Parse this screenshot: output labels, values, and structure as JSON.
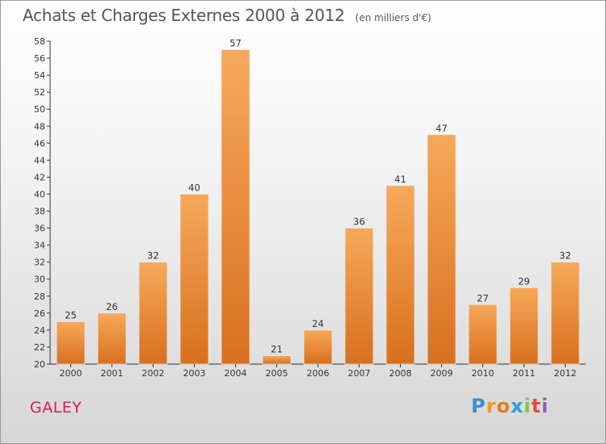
{
  "title": "Achats et Charges Externes 2000 à 2012",
  "unit_label": "(en milliers d'€)",
  "place_name": "GALEY",
  "logo": {
    "letters": [
      "P",
      "r",
      "o",
      "x",
      "i",
      "t",
      "i"
    ],
    "colors": [
      "#3a8fd0",
      "#f39c12",
      "#e67e22",
      "#2c9fd8",
      "#8bc34a",
      "#e74c3c",
      "#9b59b6"
    ]
  },
  "colors": {
    "bar_light": "#f7a95a",
    "bar_dark": "#d8701e",
    "title": "#555555",
    "place": "#d81b5c"
  },
  "chart_data": {
    "type": "bar",
    "title": "Achats et Charges Externes 2000 à 2012",
    "ylabel": "(en milliers d'€)",
    "categories": [
      "2000",
      "2001",
      "2002",
      "2003",
      "2004",
      "2005",
      "2006",
      "2007",
      "2008",
      "2009",
      "2010",
      "2011",
      "2012"
    ],
    "values": [
      25,
      26,
      32,
      40,
      57,
      21,
      24,
      36,
      41,
      47,
      27,
      29,
      32
    ],
    "ylim": [
      20,
      58
    ],
    "ytick_step": 2,
    "grid": false
  }
}
